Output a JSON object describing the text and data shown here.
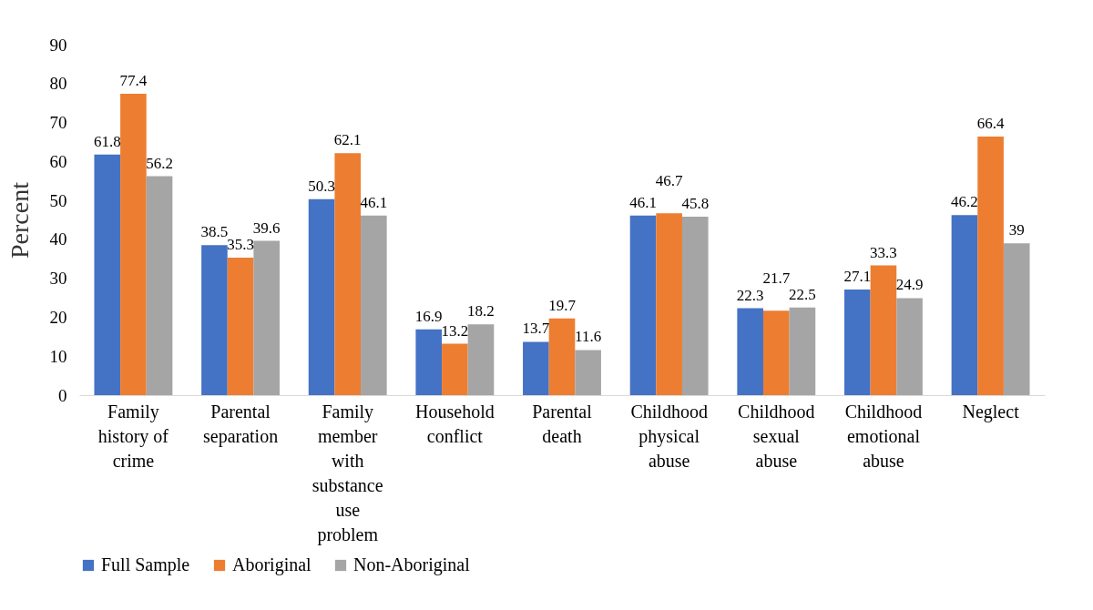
{
  "chart_data": {
    "type": "bar",
    "ylabel": "Percent",
    "categories": [
      "Family history of crime",
      "Parental separation",
      "Family member with substance use problem",
      "Household conflict",
      "Parental death",
      "Childhood physical abuse",
      "Childhood sexual abuse",
      "Childhood emotional abuse",
      "Neglect"
    ],
    "series": [
      {
        "name": "Full Sample",
        "color": "#4472c4",
        "values": [
          61.8,
          38.5,
          50.3,
          16.9,
          13.7,
          46.1,
          22.3,
          27.1,
          46.2
        ]
      },
      {
        "name": "Aboriginal",
        "color": "#ed7d31",
        "values": [
          77.4,
          35.3,
          62.1,
          13.2,
          19.7,
          46.7,
          21.7,
          33.3,
          66.4
        ]
      },
      {
        "name": "Non-Aboriginal",
        "color": "#a5a5a5",
        "values": [
          56.2,
          39.6,
          46.1,
          18.2,
          11.6,
          45.8,
          22.5,
          24.9,
          39
        ]
      }
    ],
    "ylim": [
      0,
      90
    ],
    "yticks": [
      0,
      10,
      20,
      30,
      40,
      50,
      60,
      70,
      80,
      90
    ],
    "grid": false,
    "legend": "bottom",
    "data_labels": true
  }
}
